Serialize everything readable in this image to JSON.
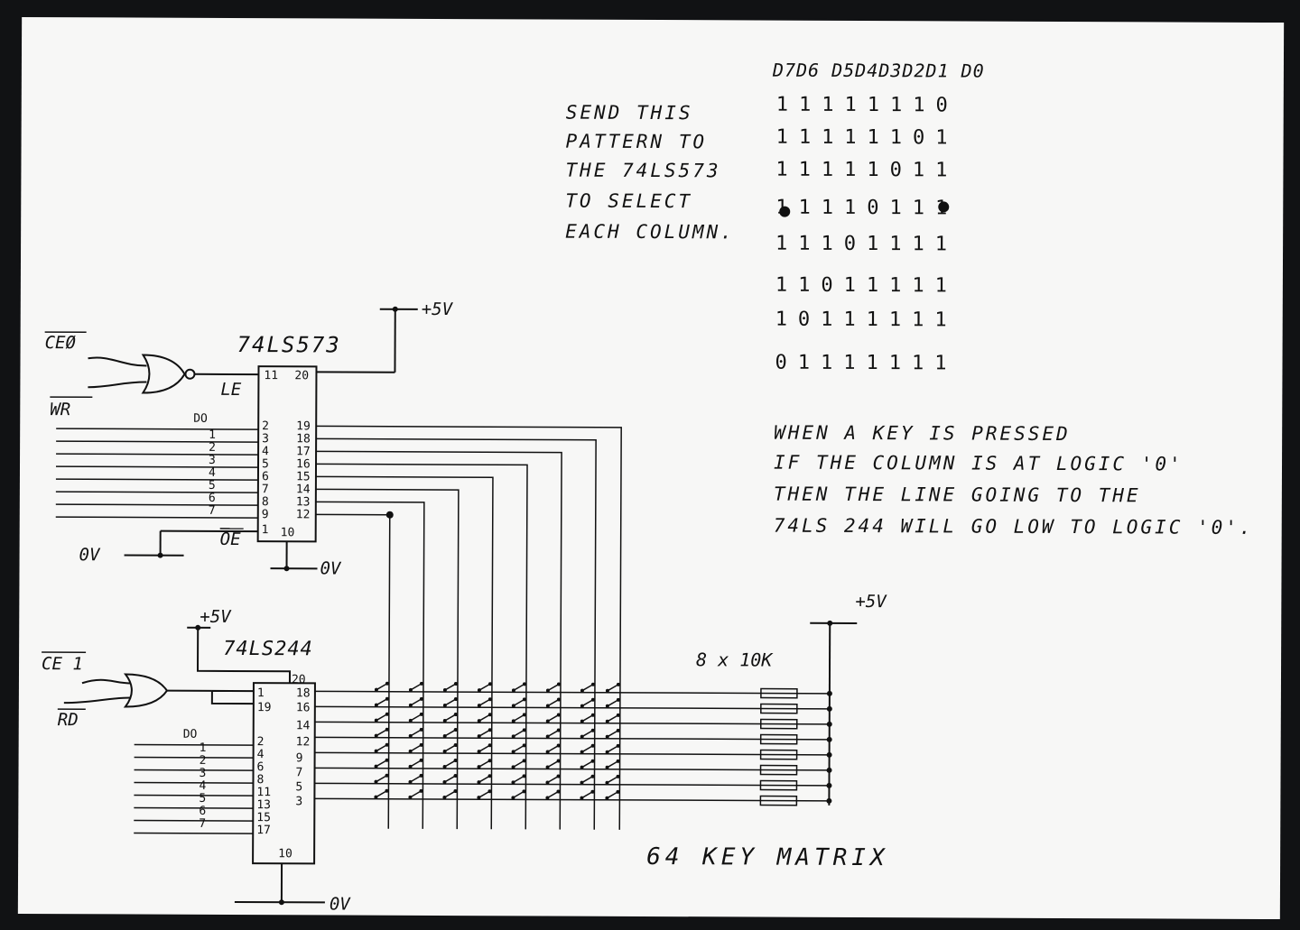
{
  "labels": {
    "ce0": "CEØ",
    "wr": "WR",
    "ce1": "CE 1",
    "rd": "RD",
    "le": "LE",
    "oe": "OE",
    "latch_chip": "74LS573",
    "buffer_chip": "74LS244",
    "plus5v": "+5V",
    "zero_v": "0V",
    "d0": "DO",
    "resistors": "8 x 10K",
    "matrix_title": "64 KEY MATRIX"
  },
  "latch_pins": {
    "le": "11",
    "vcc": "20",
    "oe": "1",
    "gnd": "10",
    "inputs": [
      "2",
      "3",
      "4",
      "5",
      "6",
      "7",
      "8",
      "9"
    ],
    "outputs": [
      "19",
      "18",
      "17",
      "16",
      "15",
      "14",
      "13",
      "12"
    ]
  },
  "buffer_pins": {
    "enable_a": "1",
    "enable_b": "19",
    "vcc": "20",
    "gnd": "10",
    "inputs": [
      "2",
      "4",
      "6",
      "8",
      "11",
      "13",
      "15",
      "17"
    ],
    "outputs": [
      "18",
      "16",
      "14",
      "12",
      "9",
      "7",
      "5",
      "3"
    ]
  },
  "data_bits": [
    "1",
    "2",
    "3",
    "4",
    "5",
    "6",
    "7"
  ],
  "instructions": [
    "SEND THIS",
    "PATTERN TO",
    "THE 74LS573",
    "TO SELECT",
    "EACH COLUMN."
  ],
  "pattern": {
    "header": "D7D6 D5D4D3D2D1 D0",
    "rows": [
      "11111110",
      "11111101",
      "11111011",
      "11110111",
      "11101111",
      "11011111",
      "10111111",
      "01111111"
    ]
  },
  "note": [
    "WHEN A KEY IS PRESSED",
    "IF THE COLUMN IS AT LOGIC '0'",
    "THEN THE LINE GOING TO THE",
    "74LS 244 WILL GO LOW TO LOGIC '0'."
  ]
}
